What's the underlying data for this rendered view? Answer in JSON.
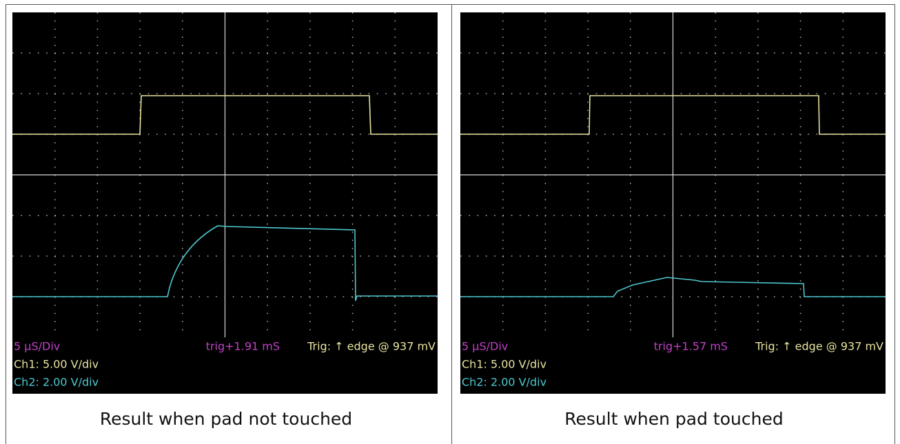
{
  "panels": [
    {
      "scope": {
        "timebase": "5 µS/Div",
        "trigger_time": "trig+1.91 mS",
        "trigger": "Trig: ↑ edge @ 937 mV",
        "ch1": "Ch1: 5.00 V/div",
        "ch2": "Ch2: 2.00 V/div"
      },
      "caption": "Result when pad not touched"
    },
    {
      "scope": {
        "timebase": "5 µS/Div",
        "trigger_time": "trig+1.57 mS",
        "trigger": "Trig: ↑ edge @ 937 mV",
        "ch1": "Ch1: 5.00 V/div",
        "ch2": "Ch2: 2.00 V/div"
      },
      "caption": "Result when pad touched"
    }
  ]
}
